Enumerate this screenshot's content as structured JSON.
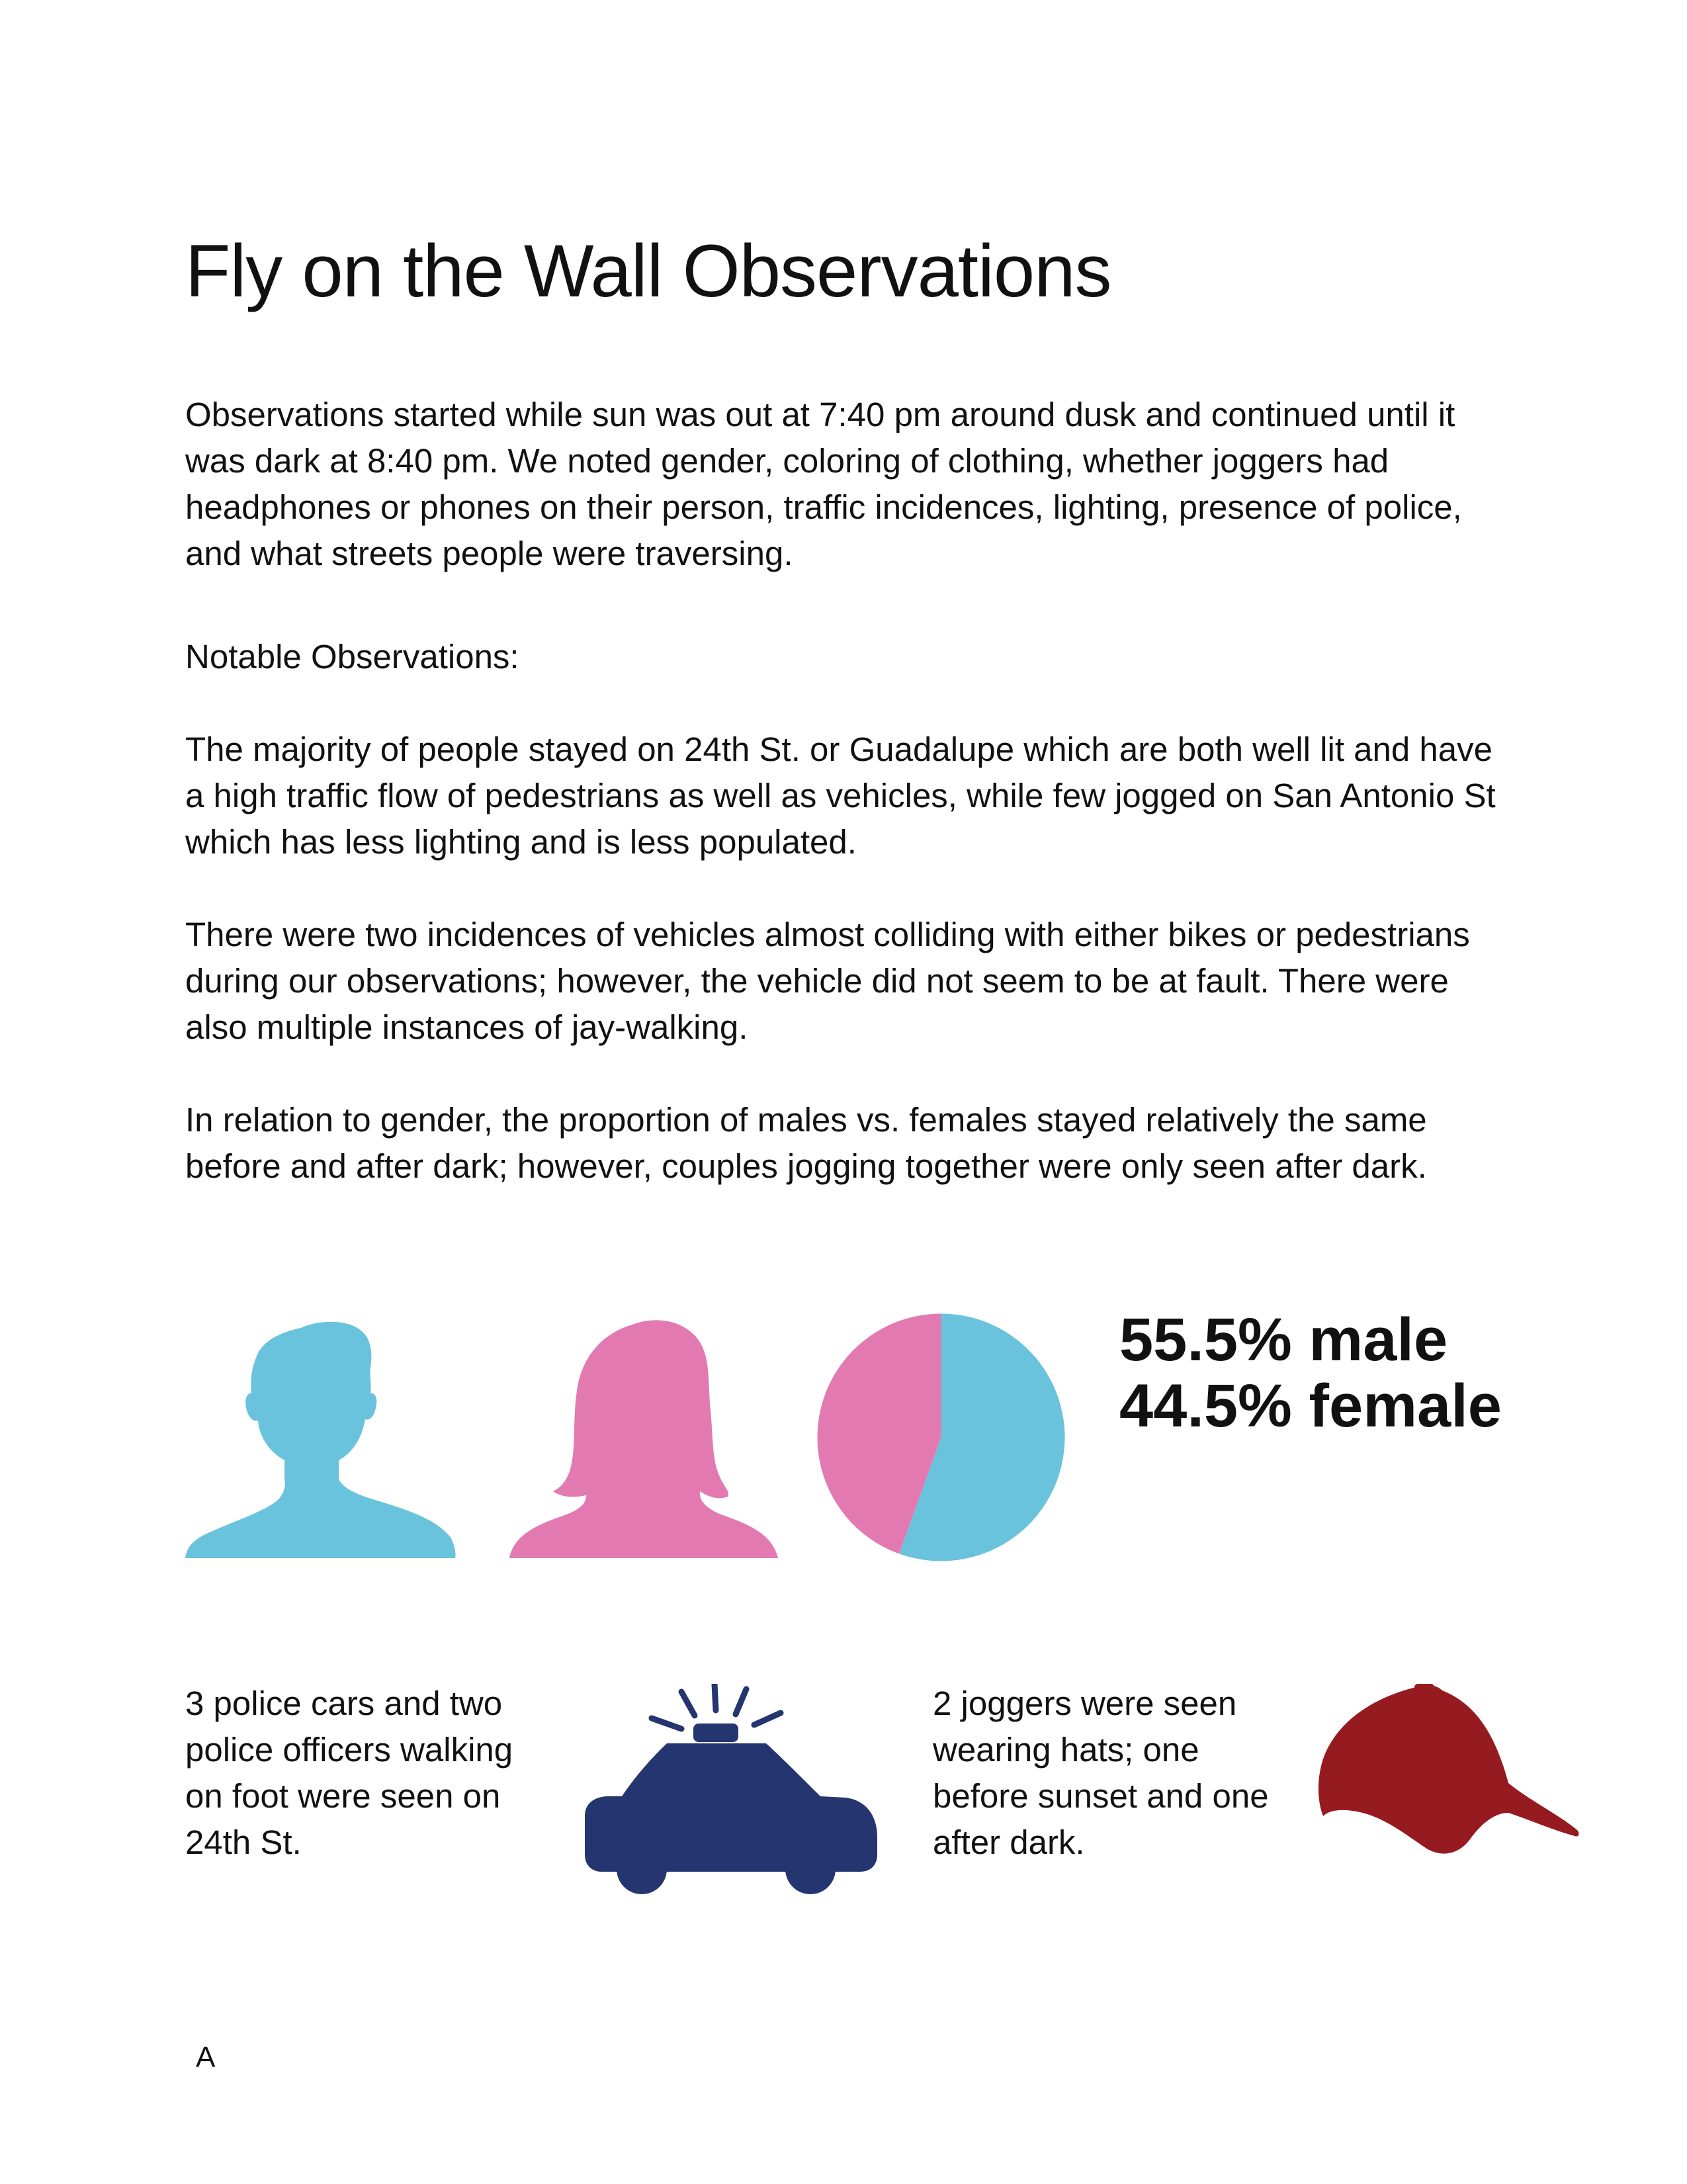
{
  "title": "Fly on the Wall Observations",
  "paragraphs": {
    "intro": "Observations started while sun was out at 7:40 pm around dusk and continued until it was dark at 8:40 pm. We noted gender, coloring of clothing, whether joggers had headphones or phones on their person, traffic incidences, lighting, presence of police, and what streets people were traversing.",
    "notable_heading": "Notable Observations:",
    "streets": "The majority of people stayed on 24th St. or Guadalupe which are both well lit and have a high traffic flow of pedestrians as well as vehicles, while few jogged on San Antonio St which has less lighting and is less populated.",
    "traffic": "There were two incidences of vehicles almost colliding with either bikes or pedestrians during our observations; however, the vehicle did not seem to be at fault. There were also multiple instances of jay-walking.",
    "gender": "In relation to gender, the proportion of males vs. females stayed relatively the same before and after dark; however, couples jogging together were only seen after dark."
  },
  "gender_stats": {
    "male_text": "55.5% male",
    "female_text": "44.5% female"
  },
  "chart_data": {
    "type": "pie",
    "categories": [
      "male",
      "female"
    ],
    "values": [
      55.5,
      44.5
    ],
    "colors": [
      "#6ac3dc",
      "#e27ab1"
    ]
  },
  "colors": {
    "male": "#6ac3dc",
    "female": "#e27ab1",
    "police": "#25356f",
    "hat": "#961b21"
  },
  "icons": {
    "male": "male-silhouette-icon",
    "female": "female-silhouette-icon",
    "police": "police-car-icon",
    "hat": "baseball-cap-icon"
  },
  "captions": {
    "police": "3 police cars and two police officers walking on foot were seen on 24th St.",
    "hats": "2 joggers were seen wearing hats; one before sunset and one after dark."
  },
  "page_letter": "A"
}
